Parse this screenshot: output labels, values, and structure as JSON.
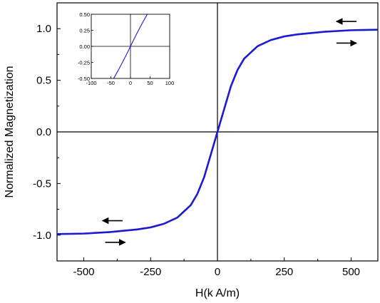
{
  "chart_data": [
    {
      "id": "main",
      "type": "line",
      "title": "",
      "xlabel": "H(k A/m)",
      "ylabel": "Normalized Magnetization",
      "xlim": [
        -600,
        600
      ],
      "ylim": [
        -1.25,
        1.25
      ],
      "x_ticks": [
        -500,
        -250,
        0,
        250,
        500
      ],
      "x_tick_labels": [
        "-500",
        "-250",
        "0",
        "250",
        "500"
      ],
      "y_ticks": [
        -1.0,
        -0.5,
        0.0,
        0.5,
        1.0
      ],
      "y_tick_labels": [
        "-1.0",
        "-0.5",
        "0.0",
        "0.5",
        "1.0"
      ],
      "grid": false,
      "reference_lines": {
        "x": 0,
        "y": 0
      },
      "series": [
        {
          "color": "#e8202a",
          "style": "dashed",
          "x": [
            -600,
            -500,
            -400,
            -300,
            -250,
            -200,
            -150,
            -100,
            -75,
            -50,
            -25,
            0,
            25,
            50,
            75,
            100,
            150,
            200,
            250,
            300,
            400,
            500,
            600
          ],
          "y": [
            -0.99,
            -0.985,
            -0.97,
            -0.945,
            -0.925,
            -0.89,
            -0.83,
            -0.71,
            -0.6,
            -0.44,
            -0.22,
            0.0,
            0.22,
            0.44,
            0.6,
            0.71,
            0.83,
            0.89,
            0.925,
            0.945,
            0.97,
            0.985,
            0.99
          ]
        },
        {
          "color": "#1b1bd6",
          "style": "solid",
          "x": [
            -600,
            -500,
            -400,
            -300,
            -250,
            -200,
            -150,
            -100,
            -75,
            -50,
            -25,
            0,
            25,
            50,
            75,
            100,
            150,
            200,
            250,
            300,
            400,
            500,
            600
          ],
          "y": [
            -0.99,
            -0.985,
            -0.97,
            -0.945,
            -0.925,
            -0.89,
            -0.83,
            -0.71,
            -0.6,
            -0.44,
            -0.22,
            0.0,
            0.22,
            0.44,
            0.6,
            0.71,
            0.83,
            0.89,
            0.925,
            0.945,
            0.97,
            0.985,
            0.99
          ]
        }
      ],
      "annotations": [
        {
          "type": "arrow",
          "direction": "left",
          "from": [
            520,
            1.07
          ],
          "to": [
            445,
            1.07
          ]
        },
        {
          "type": "arrow",
          "direction": "right",
          "from": [
            445,
            0.86
          ],
          "to": [
            520,
            0.86
          ]
        },
        {
          "type": "arrow",
          "direction": "left",
          "from": [
            -355,
            -0.86
          ],
          "to": [
            -430,
            -0.86
          ]
        },
        {
          "type": "arrow",
          "direction": "right",
          "from": [
            -420,
            -1.07
          ],
          "to": [
            -345,
            -1.07
          ]
        }
      ]
    },
    {
      "id": "inset",
      "type": "line",
      "title": "",
      "xlabel": "",
      "ylabel": "",
      "xlim": [
        -100,
        100
      ],
      "ylim": [
        -0.5,
        0.5
      ],
      "x_ticks": [
        -100,
        -50,
        0,
        50,
        100
      ],
      "x_tick_labels": [
        "-100",
        "-50",
        "0",
        "50",
        "100"
      ],
      "y_ticks": [
        -0.5,
        -0.25,
        0.0,
        0.25,
        0.5
      ],
      "y_tick_labels": [
        "-0.50",
        "-0.25",
        "0.00",
        "0.25",
        "0.50"
      ],
      "grid": false,
      "reference_lines": {
        "x": 0,
        "y": 0
      },
      "series": [
        {
          "color": "#1b1bd6",
          "style": "solid",
          "x": [
            -43,
            -40,
            -30,
            -20,
            -10,
            0,
            10,
            20,
            30,
            40,
            43
          ],
          "y": [
            -0.5,
            -0.47,
            -0.36,
            -0.245,
            -0.125,
            0.0,
            0.125,
            0.245,
            0.36,
            0.47,
            0.5
          ]
        }
      ]
    }
  ]
}
